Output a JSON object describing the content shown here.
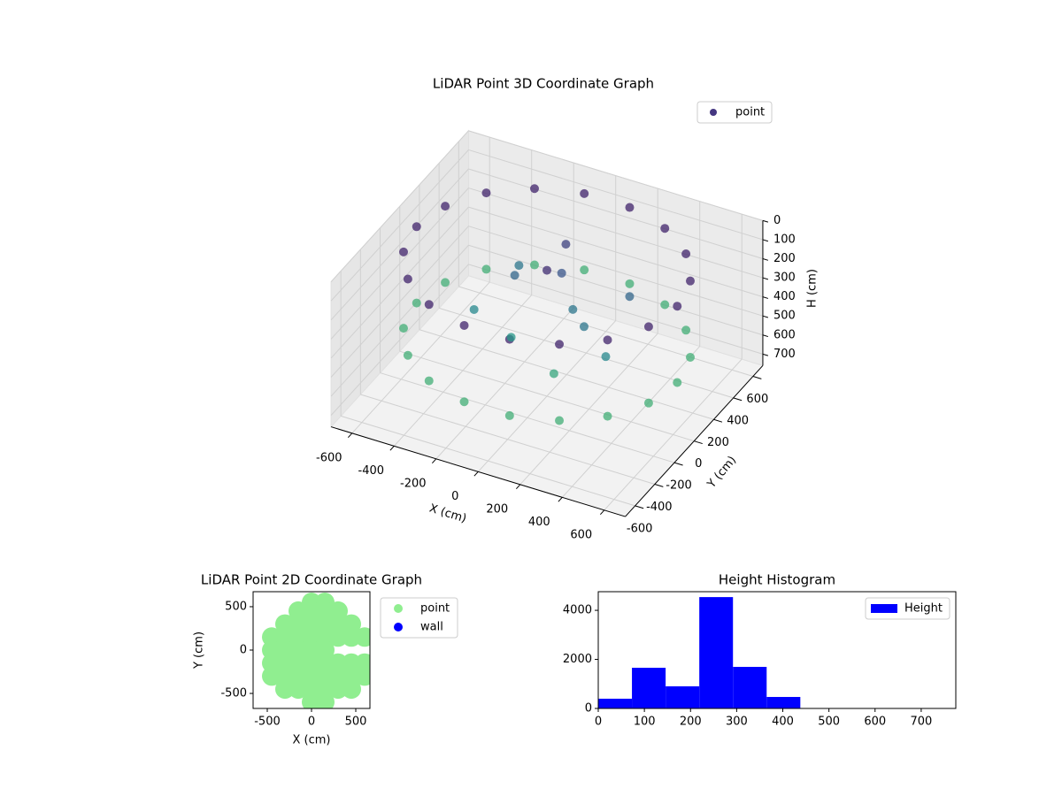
{
  "chart_data": [
    {
      "type": "scatter3d",
      "title": "LiDAR Point 3D Coordinate Graph",
      "xlabel": "X (cm)",
      "ylabel": "Y (cm)",
      "zlabel": "H (cm)",
      "xlim": [
        -700,
        700
      ],
      "ylim": [
        -700,
        700
      ],
      "zlim": [
        0,
        760
      ],
      "z_inverted": true,
      "xticks": [
        -600,
        -400,
        -200,
        0,
        200,
        400,
        600
      ],
      "yticks": [
        -600,
        -400,
        -200,
        0,
        200,
        400,
        600
      ],
      "zticks": [
        0,
        100,
        200,
        300,
        400,
        500,
        600,
        700
      ],
      "cmap": [
        "#440154",
        "#3b528b",
        "#21918c",
        "#5ec962",
        "#fde725"
      ],
      "legend": "upper right",
      "series": [
        {
          "name": "point",
          "color": "#453781",
          "x": [
            620,
            583,
            475,
            310,
            108,
            -108,
            -310,
            -475,
            -583,
            -620,
            -583,
            -475,
            -310,
            -108,
            108,
            310,
            475,
            583,
            620,
            583,
            475,
            310,
            108,
            -108,
            -310,
            -475,
            -583,
            -620,
            -583,
            -475,
            -310,
            -108,
            108,
            310,
            475,
            583,
            -200,
            0,
            100,
            -300,
            -100,
            200,
            300,
            -50,
            150,
            -250,
            0,
            350
          ],
          "y": [
            0,
            212,
            399,
            537,
            611,
            611,
            537,
            399,
            212,
            0,
            -212,
            -399,
            -537,
            -611,
            -611,
            -537,
            -399,
            -212,
            0,
            212,
            399,
            537,
            611,
            611,
            537,
            399,
            212,
            0,
            -212,
            -399,
            -537,
            -611,
            -611,
            -537,
            -399,
            -212,
            100,
            150,
            50,
            -100,
            -150,
            -50,
            200,
            300,
            -250,
            250,
            0,
            -150
          ],
          "h": [
            80,
            80,
            80,
            80,
            80,
            80,
            80,
            80,
            80,
            80,
            80,
            80,
            80,
            80,
            80,
            80,
            80,
            80,
            480,
            480,
            480,
            480,
            480,
            480,
            480,
            480,
            480,
            480,
            480,
            480,
            480,
            480,
            480,
            480,
            480,
            480,
            250,
            200,
            300,
            350,
            400,
            300,
            250,
            150,
            450,
            300,
            100,
            350
          ]
        }
      ]
    },
    {
      "type": "scatter",
      "title": "LiDAR Point 2D Coordinate Graph",
      "xlabel": "X (cm)",
      "ylabel": "Y (cm)",
      "xlim": [
        -660,
        660
      ],
      "ylim": [
        -673,
        673
      ],
      "xticks": [
        -500,
        0,
        500
      ],
      "yticks": [
        -500,
        0,
        500
      ],
      "legend": "outside upper right",
      "series": [
        {
          "name": "point",
          "color": "#90ee90",
          "x": [
            0,
            150,
            -150,
            0,
            150,
            300,
            -300,
            -150,
            0,
            150,
            300,
            450,
            -450,
            -300,
            -150,
            0,
            150,
            300,
            450,
            600,
            -450,
            -300,
            -150,
            0,
            150,
            -450,
            -300,
            -150,
            0,
            150,
            300,
            450,
            600,
            -450,
            -300,
            -150,
            0,
            150,
            300,
            450,
            600,
            -300,
            -150,
            0,
            150,
            300,
            450,
            0,
            150
          ],
          "y": [
            550,
            550,
            450,
            450,
            450,
            450,
            300,
            300,
            300,
            300,
            300,
            300,
            150,
            150,
            150,
            150,
            150,
            150,
            150,
            150,
            0,
            0,
            0,
            0,
            0,
            -150,
            -150,
            -150,
            -150,
            -150,
            -150,
            -150,
            -150,
            -300,
            -300,
            -300,
            -300,
            -300,
            -300,
            -300,
            -300,
            -450,
            -450,
            -450,
            -450,
            -450,
            -450,
            -600,
            -600
          ]
        },
        {
          "name": "wall",
          "color": "#0000ff",
          "x": [],
          "y": []
        }
      ]
    },
    {
      "type": "histogram",
      "title": "Height Histogram",
      "bins": [
        0,
        73,
        146,
        219,
        292,
        365,
        438,
        511,
        584,
        657,
        730
      ],
      "counts": [
        396,
        1658,
        901,
        4540,
        1694,
        468,
        0,
        0,
        0,
        0
      ],
      "xlim": [
        0,
        775
      ],
      "ylim": [
        0,
        4760
      ],
      "xticks": [
        0,
        100,
        200,
        300,
        400,
        500,
        600,
        700
      ],
      "yticks": [
        0,
        2000,
        4000
      ],
      "legend": "upper right",
      "series": [
        {
          "name": "Height",
          "color": "#0000ff"
        }
      ]
    }
  ]
}
